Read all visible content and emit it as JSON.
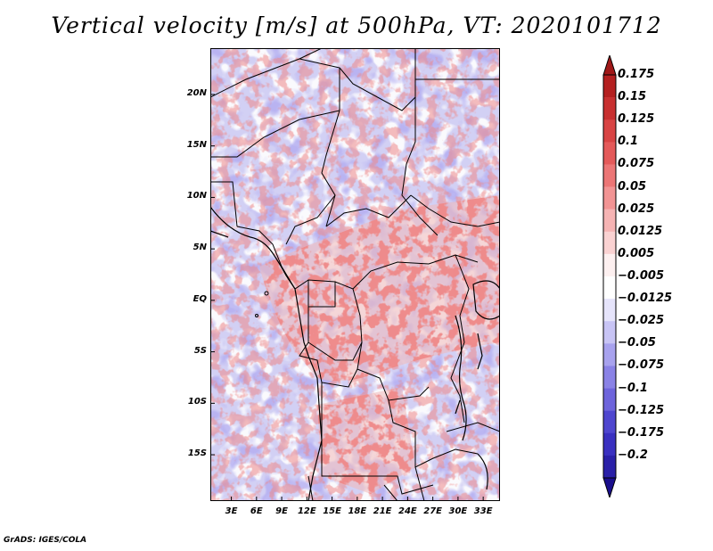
{
  "title": "Vertical velocity [m/s] at 500hPa, VT: 2020101712",
  "credit": "GrADS: IGES/COLA",
  "map": {
    "variable": "Vertical velocity",
    "units": "m/s",
    "level": "500hPa",
    "valid_time": "2020101712",
    "lat_labels": [
      "20N",
      "15N",
      "10N",
      "5N",
      "EQ",
      "5S",
      "10S",
      "15S"
    ],
    "lat_values": [
      20,
      15,
      10,
      5,
      0,
      -5,
      -10,
      -15
    ],
    "lon_labels": [
      "3E",
      "6E",
      "9E",
      "12E",
      "15E",
      "18E",
      "21E",
      "24E",
      "27E",
      "30E",
      "33E"
    ],
    "lon_values": [
      3,
      6,
      9,
      12,
      15,
      18,
      21,
      24,
      27,
      30,
      33
    ],
    "lat_range": [
      -19.5,
      24.5
    ],
    "lon_range": [
      0.5,
      35.0
    ]
  },
  "colorbar": {
    "labels": [
      "0.175",
      "0.15",
      "0.125",
      "0.1",
      "0.075",
      "0.05",
      "0.025",
      "0.0125",
      "0.005",
      "−0.005",
      "−0.0125",
      "−0.025",
      "−0.05",
      "−0.075",
      "−0.1",
      "−0.125",
      "−0.175",
      "−0.2"
    ],
    "colors": [
      "#a01818",
      "#b42020",
      "#c83030",
      "#d84444",
      "#e45a5a",
      "#ec7676",
      "#f29494",
      "#f6b4b4",
      "#fad2d2",
      "#fdf0f0",
      "#ffffff",
      "#e6e4fb",
      "#c8c4f5",
      "#a8a2ee",
      "#8a82e6",
      "#6e64dc",
      "#4f46cf",
      "#3a30c0",
      "#2a20a8",
      "#1a0e8c"
    ]
  },
  "palette": {
    "frame": "#000000",
    "background": "#ffffff"
  }
}
